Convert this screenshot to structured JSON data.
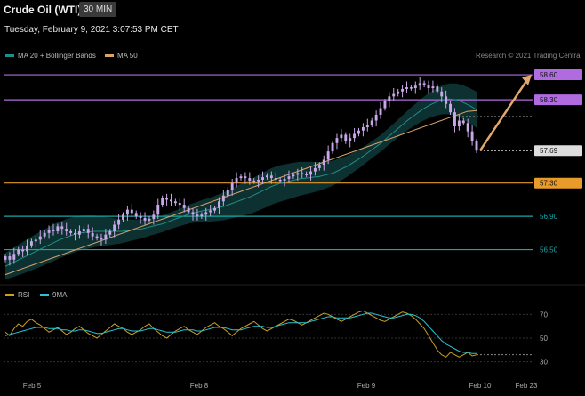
{
  "header": {
    "title": "Crude Oil (WTI)",
    "timeframe": "30 MIN",
    "datetime": "Tuesday, February 9, 2021 3:07:53 PM CET",
    "credit": "Research © 2021 Trading Central"
  },
  "legend": {
    "ma20_label": "MA 20 + Bollinger Bands",
    "ma50_label": "MA 50",
    "rsi_label": "RSI",
    "rsi_ma_label": "9MA"
  },
  "colors": {
    "background": "#000000",
    "candle": "#c8a8e8",
    "ma20": "#1f8f8a",
    "ma50": "#d9a36a",
    "bollinger_fill": "#0f3a38",
    "resistance": "#b06be0",
    "support_primary": "#e89a2a",
    "support_secondary": "#1aa6a6",
    "current": "#dddddd",
    "target_arrow": "#e3a86b",
    "rsi": "#c9a024",
    "rsi_ma": "#28c6d4"
  },
  "levels": [
    {
      "value": "58.60",
      "type": "resistance",
      "boxed": true
    },
    {
      "value": "58.30",
      "type": "resistance",
      "boxed": true
    },
    {
      "value": "57.69",
      "type": "current",
      "boxed": true
    },
    {
      "value": "57.30",
      "type": "support_primary",
      "boxed": true
    },
    {
      "value": "56.90",
      "type": "support_secondary",
      "boxed": false
    },
    {
      "value": "56.50",
      "type": "support_secondary",
      "boxed": false
    }
  ],
  "rsi_ticks": [
    "70",
    "50",
    "30"
  ],
  "x_axis": [
    "Feb 5",
    "Feb 8",
    "Feb 9",
    "Feb 10",
    "Feb 23"
  ],
  "chart_data": {
    "type": "candlestick",
    "y_range_price": [
      56.1,
      58.75
    ],
    "y_range_rsi": [
      20,
      80
    ],
    "price_candles_close": [
      56.42,
      56.38,
      56.45,
      56.5,
      56.48,
      56.55,
      56.6,
      56.62,
      56.66,
      56.7,
      56.74,
      56.72,
      56.78,
      56.75,
      56.72,
      56.7,
      56.68,
      56.72,
      56.75,
      56.7,
      56.66,
      56.64,
      56.62,
      56.68,
      56.72,
      56.8,
      56.86,
      56.92,
      56.98,
      56.94,
      56.9,
      56.88,
      56.85,
      56.87,
      56.92,
      57.04,
      57.12,
      57.1,
      57.08,
      57.06,
      57.04,
      57.0,
      56.95,
      56.92,
      56.9,
      56.92,
      56.95,
      56.97,
      57.0,
      57.08,
      57.15,
      57.22,
      57.3,
      57.36,
      57.38,
      57.36,
      57.33,
      57.32,
      57.34,
      57.37,
      57.39,
      57.36,
      57.34,
      57.33,
      57.35,
      57.38,
      57.4,
      57.42,
      57.41,
      57.4,
      57.44,
      57.48,
      57.52,
      57.58,
      57.68,
      57.78,
      57.84,
      57.88,
      57.8,
      57.84,
      57.89,
      57.93,
      57.97,
      58.0,
      58.05,
      58.12,
      58.2,
      58.28,
      58.34,
      58.37,
      58.4,
      58.43,
      58.45,
      58.44,
      58.47,
      58.5,
      58.48,
      58.44,
      58.46,
      58.4,
      58.34,
      58.25,
      58.15,
      57.98,
      58.05,
      58.02,
      57.92,
      57.8,
      57.69
    ],
    "ma20_values": [
      56.3,
      56.34,
      56.38,
      56.42,
      56.46,
      56.5,
      56.54,
      56.58,
      56.62,
      56.65,
      56.68,
      56.7,
      56.71,
      56.72,
      56.72,
      56.72,
      56.72,
      56.72,
      56.73,
      56.74,
      56.75,
      56.77,
      56.79,
      56.81,
      56.84,
      56.87,
      56.9,
      56.93,
      56.95,
      56.97,
      56.98,
      57.0,
      57.02,
      57.05,
      57.08,
      57.11,
      57.14,
      57.18,
      57.22,
      57.26,
      57.29,
      57.31,
      57.33,
      57.35,
      57.36,
      57.37,
      57.38,
      57.4,
      57.42,
      57.46,
      57.5,
      57.55,
      57.6,
      57.66,
      57.72,
      57.78,
      57.85,
      57.92,
      57.99,
      58.06,
      58.12,
      58.18,
      58.23,
      58.27,
      58.3,
      58.31,
      58.3,
      58.27,
      58.23,
      58.18
    ],
    "ma50_values": [
      56.2,
      56.24,
      56.28,
      56.32,
      56.36,
      56.4,
      56.44,
      56.48,
      56.52,
      56.56,
      56.6,
      56.64,
      56.68,
      56.72,
      56.76,
      56.8,
      56.84,
      56.88,
      56.92,
      56.96,
      57.0,
      57.04,
      57.08,
      57.12,
      57.16,
      57.2,
      57.24,
      57.28,
      57.32,
      57.36,
      57.4,
      57.44,
      57.48,
      57.52,
      57.56,
      57.6,
      57.64,
      57.68,
      57.72,
      57.76,
      57.8,
      57.84,
      57.88,
      57.92,
      57.96,
      58.0,
      58.04,
      58.08,
      58.12,
      58.16,
      58.17
    ],
    "target": {
      "from": "57.69",
      "to": "58.60"
    },
    "rsi_values": [
      55,
      52,
      58,
      62,
      60,
      64,
      66,
      63,
      61,
      58,
      55,
      57,
      59,
      56,
      53,
      55,
      58,
      60,
      57,
      54,
      52,
      50,
      53,
      56,
      59,
      62,
      60,
      58,
      55,
      53,
      55,
      57,
      60,
      62,
      58,
      55,
      52,
      50,
      53,
      56,
      58,
      60,
      57,
      55,
      53,
      56,
      59,
      61,
      63,
      60,
      58,
      55,
      52,
      55,
      58,
      60,
      62,
      64,
      61,
      58,
      56,
      58,
      60,
      62,
      64,
      66,
      65,
      63,
      61,
      63,
      65,
      67,
      69,
      71,
      70,
      68,
      66,
      64,
      66,
      68,
      70,
      72,
      73,
      71,
      69,
      67,
      65,
      64,
      66,
      68,
      70,
      72,
      71,
      69,
      66,
      62,
      58,
      52,
      46,
      40,
      36,
      34,
      38,
      36,
      34,
      36,
      38,
      35,
      36
    ],
    "rsi_ma_values": [
      52,
      53,
      54,
      55,
      56,
      57,
      58,
      59,
      59,
      59,
      58,
      58,
      58,
      57,
      57,
      56,
      56,
      57,
      57,
      56,
      55,
      54,
      54,
      55,
      56,
      57,
      58,
      58,
      57,
      56,
      56,
      56,
      57,
      58,
      58,
      57,
      56,
      55,
      55,
      55,
      56,
      57,
      57,
      57,
      56,
      56,
      57,
      58,
      59,
      59,
      59,
      58,
      57,
      57,
      57,
      58,
      59,
      60,
      60,
      60,
      59,
      59,
      60,
      61,
      62,
      63,
      63,
      63,
      63,
      63,
      64,
      65,
      66,
      67,
      68,
      68,
      67,
      67,
      67,
      67,
      68,
      69,
      70,
      71,
      71,
      70,
      69,
      68,
      67,
      67,
      68,
      69,
      70,
      70,
      69,
      67,
      64,
      60,
      56,
      52,
      48,
      45,
      43,
      41,
      39,
      38,
      38,
      37,
      37
    ]
  }
}
